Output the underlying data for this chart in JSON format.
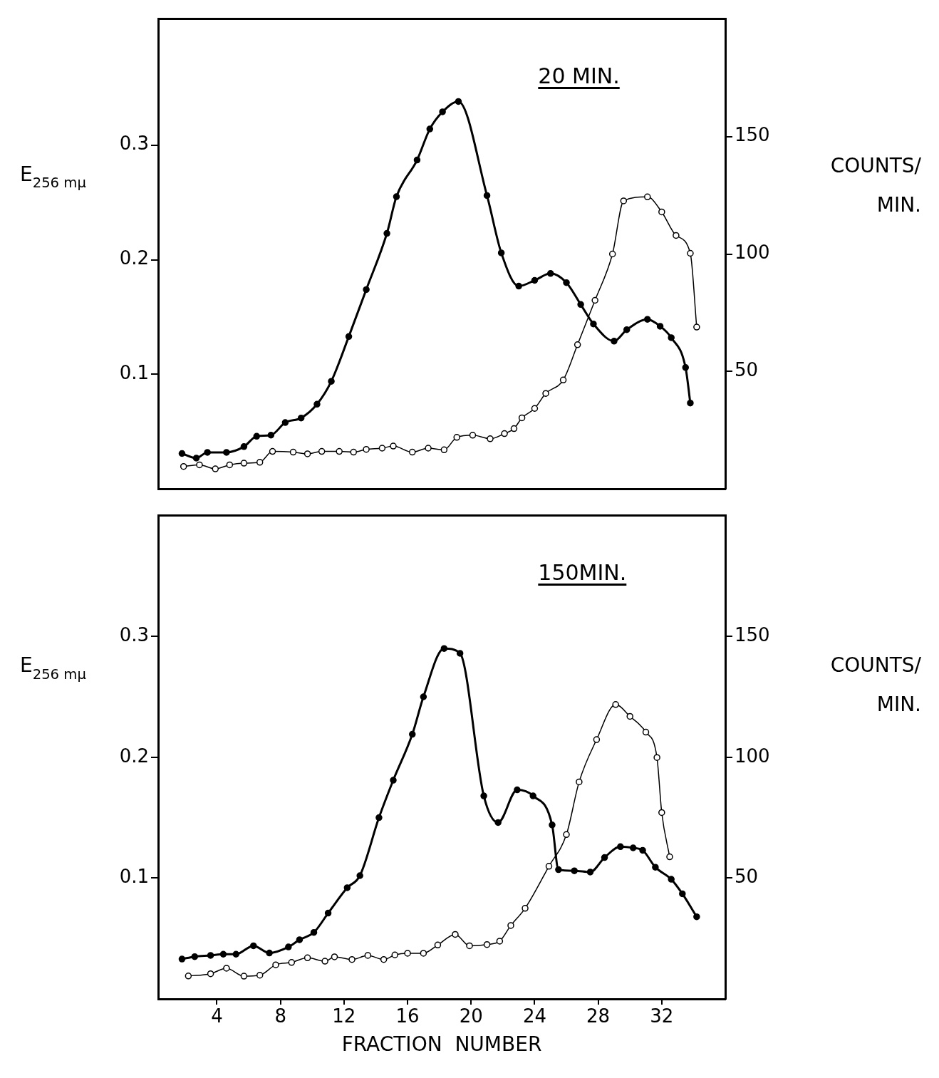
{
  "chart_data": [
    {
      "type": "line",
      "title": "20 MIN.",
      "ylabel": "E$_{256 mμ}$",
      "y2label": "COUNTS/ MIN.",
      "marker": "circle",
      "tick_labels": "y",
      "xlim": [
        0.3,
        36
      ],
      "ylim": [
        0,
        0.41
      ],
      "yticks": [
        0.1,
        0.2,
        0.3
      ],
      "y2lim": [
        0,
        200
      ],
      "y2ticks": [
        50,
        100,
        150
      ],
      "series": [
        {
          "color": "#000000",
          "x": [
            1.8,
            2.7,
            3.4,
            4.6,
            5.7,
            6.5,
            7.4,
            8.3,
            9.3,
            10.3,
            11.2,
            12.3,
            13.4,
            14.7,
            15.3,
            16.6,
            17.4,
            18.2,
            19.2,
            21,
            21.9,
            23,
            24,
            25,
            26,
            26.9,
            27.7,
            29,
            29.8,
            31.1,
            31.9,
            32.6,
            33.5,
            33.8
          ],
          "values": [
            0.031,
            0.027,
            0.032,
            0.032,
            0.037,
            0.046,
            0.047,
            0.058,
            0.062,
            0.074,
            0.094,
            0.133,
            0.174,
            0.223,
            0.255,
            0.287,
            0.314,
            0.329,
            0.338,
            0.256,
            0.206,
            0.177,
            0.182,
            0.188,
            0.18,
            0.161,
            0.144,
            0.129,
            0.139,
            0.148,
            0.142,
            0.132,
            0.106,
            0.075
          ]
        },
        {
          "color": "#000000",
          "axis": "y2",
          "x": [
            1.9,
            2.9,
            3.9,
            4.8,
            5.7,
            6.7,
            7.5,
            8.8,
            9.7,
            10.6,
            11.7,
            12.6,
            13.4,
            14.4,
            15.1,
            16.3,
            17.3,
            18.3,
            19.1,
            20.1,
            21.2,
            22.1,
            22.7,
            23.2,
            24,
            24.7,
            25.8,
            26.7,
            27.8,
            28.9,
            29.6,
            31.1,
            32,
            32.9,
            33.8,
            34.2
          ],
          "values": [
            9.6,
            10.3,
            8.6,
            10.3,
            11,
            11.4,
            16,
            15.7,
            15,
            16,
            16,
            15.7,
            16.9,
            17.4,
            18.3,
            15.7,
            17.4,
            16.7,
            22,
            22.9,
            21.4,
            23.6,
            25.7,
            30.3,
            34.3,
            40.7,
            46.4,
            61.4,
            80.3,
            100,
            122.6,
            124.3,
            117.9,
            107.9,
            100.3,
            68.9
          ]
        }
      ]
    },
    {
      "type": "line",
      "title": "150MIN.",
      "ylabel": "E$_{256 mμ}$",
      "y2label": "COUNTS/ MIN.",
      "xlabel": "FRACTION  NUMBER",
      "marker": "circle",
      "xlim": [
        0.3,
        36
      ],
      "xticks": [
        4,
        8,
        12,
        16,
        20,
        24,
        28,
        32
      ],
      "ylim": [
        0,
        0.4
      ],
      "yticks": [
        0.1,
        0.2,
        0.3
      ],
      "y2lim": [
        0,
        200
      ],
      "y2ticks": [
        50,
        100,
        150
      ],
      "series": [
        {
          "color": "#000000",
          "x": [
            1.8,
            2.6,
            3.6,
            4.4,
            5.2,
            6.3,
            7.3,
            8.5,
            9.2,
            10.1,
            11,
            12.2,
            13,
            14.2,
            15.1,
            16.3,
            17,
            18.3,
            19.3,
            20.8,
            21.7,
            22.9,
            23.9,
            25.1,
            25.5,
            26.5,
            27.5,
            28.4,
            29.4,
            30.2,
            30.8,
            31.6,
            32.6,
            33.3,
            34.2
          ],
          "values": [
            0.033,
            0.035,
            0.036,
            0.037,
            0.037,
            0.044,
            0.038,
            0.043,
            0.049,
            0.055,
            0.071,
            0.092,
            0.102,
            0.15,
            0.181,
            0.219,
            0.25,
            0.29,
            0.286,
            0.168,
            0.146,
            0.173,
            0.168,
            0.144,
            0.107,
            0.106,
            0.105,
            0.117,
            0.126,
            0.125,
            0.123,
            0.109,
            0.099,
            0.087,
            0.068
          ]
        },
        {
          "color": "#000000",
          "axis": "y2",
          "x": [
            2.2,
            3.6,
            4.6,
            5.7,
            6.7,
            7.7,
            8.7,
            9.7,
            10.8,
            11.4,
            12.5,
            13.5,
            14.5,
            15.2,
            16,
            17,
            17.9,
            19,
            19.9,
            21,
            21.8,
            22.5,
            23.4,
            24.9,
            26,
            26.8,
            27.9,
            29.1,
            30,
            31,
            31.7,
            32,
            32.5
          ],
          "values": [
            9.5,
            10.4,
            12.7,
            9.4,
            9.8,
            14.1,
            15.1,
            17,
            15.6,
            17.4,
            16.3,
            18,
            16.3,
            18.2,
            18.9,
            18.9,
            22.3,
            26.7,
            22,
            22.5,
            23.9,
            30.4,
            37.5,
            54.9,
            68,
            89.8,
            107.3,
            121.8,
            116.9,
            110.4,
            99.9,
            77.1,
            58.8
          ]
        }
      ]
    }
  ]
}
